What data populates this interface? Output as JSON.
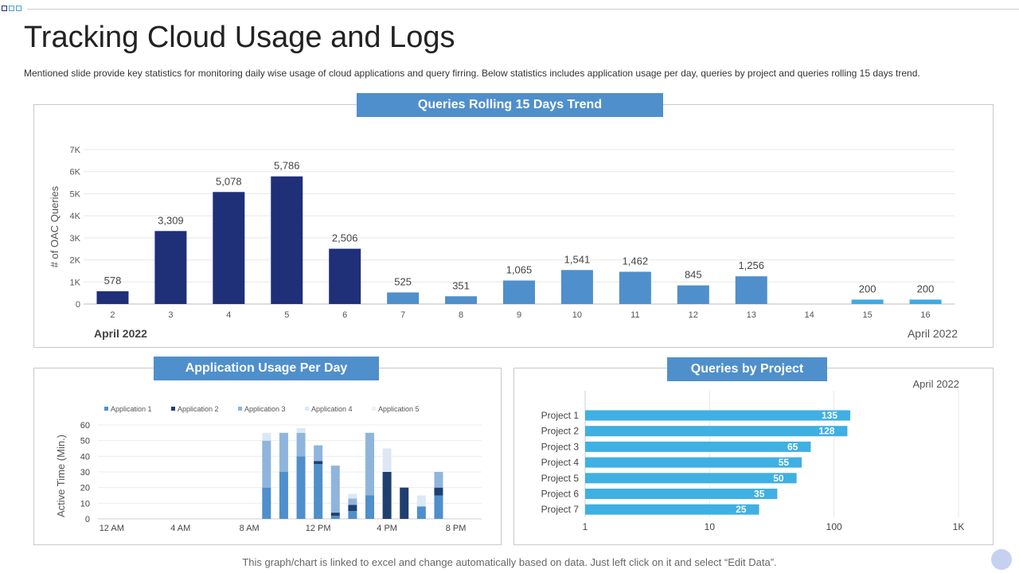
{
  "page": {
    "title": "Tracking Cloud Usage and Logs",
    "subtitle": "Mentioned slide provide key statistics for monitoring daily wise usage of cloud applications and query firring. Below statistics includes application usage per day, queries by project and queries rolling 15 days trend.",
    "footer": "This graph/chart is linked to excel and change automatically based on data. Just left click on it and select “Edit Data”."
  },
  "chart_data": [
    {
      "type": "bar",
      "title": "Queries Rolling 15 Days Trend",
      "xlabel": "",
      "ylabel": "# of OAC Queries",
      "categories": [
        "2",
        "3",
        "4",
        "5",
        "6",
        "7",
        "8",
        "9",
        "10",
        "11",
        "12",
        "13",
        "14",
        "15",
        "16"
      ],
      "values": [
        578,
        3309,
        5078,
        5786,
        2506,
        525,
        351,
        1065,
        1541,
        1462,
        845,
        1256,
        0,
        200,
        200
      ],
      "data_labels": [
        "578",
        "3,309",
        "5,078",
        "5,786",
        "2,506",
        "525",
        "351",
        "1,065",
        "1,541",
        "1,462",
        "845",
        "1,256",
        "",
        "200",
        "200"
      ],
      "yticks": [
        "0",
        "1K",
        "2K",
        "3K",
        "4K",
        "5K",
        "6K",
        "7K"
      ],
      "ylim": [
        0,
        7000
      ],
      "colors": [
        "#1f2f78",
        "#1f2f78",
        "#1f2f78",
        "#1f2f78",
        "#1f2f78",
        "#4f8fcb",
        "#4f8fcb",
        "#4f8fcb",
        "#4f8fcb",
        "#4f8fcb",
        "#4f8fcb",
        "#4f8fcb",
        "#4f8fcb",
        "#3fa9e0",
        "#3fa9e0"
      ],
      "annotation_left": "April 2022",
      "annotation_right": "April 2022",
      "grid": true
    },
    {
      "type": "bar",
      "stacked": true,
      "title": "Application Usage Per Day",
      "ylabel": "Active Time (Min.)",
      "xlabel": "",
      "ylim": [
        0,
        60
      ],
      "yticks": [
        "0",
        "10",
        "20",
        "30",
        "40",
        "50",
        "60"
      ],
      "xticks": [
        "12 AM",
        "4 AM",
        "8 AM",
        "12 PM",
        "4 PM",
        "8 PM"
      ],
      "x": [
        9,
        10,
        11,
        12,
        13,
        14,
        15,
        16,
        17,
        18,
        19
      ],
      "series": [
        {
          "name": "Application 1",
          "color": "#4f8fcb",
          "values": [
            20,
            30,
            40,
            35,
            2,
            5,
            15,
            0,
            0,
            8,
            15
          ]
        },
        {
          "name": "Application 2",
          "color": "#1f3f6f",
          "values": [
            0,
            0,
            0,
            2,
            2,
            4,
            0,
            30,
            20,
            0,
            5
          ]
        },
        {
          "name": "Application 3",
          "color": "#8fb5dd",
          "values": [
            30,
            25,
            15,
            10,
            30,
            4,
            40,
            0,
            0,
            0,
            10
          ]
        },
        {
          "name": "Application 4",
          "color": "#dce8f5",
          "values": [
            5,
            0,
            3,
            0,
            0,
            3,
            0,
            15,
            0,
            7,
            0
          ]
        },
        {
          "name": "Application 5",
          "color": "#eaf1f9",
          "values": [
            0,
            0,
            0,
            0,
            0,
            0,
            0,
            0,
            0,
            0,
            0
          ]
        }
      ],
      "legend": "top",
      "grid": true
    },
    {
      "type": "bar",
      "orientation": "horizontal",
      "title": "Queries by Project",
      "xscale": "log",
      "categories": [
        "Project 1",
        "Project 2",
        "Project 3",
        "Project 4",
        "Project 5",
        "Project 6",
        "Project 7"
      ],
      "values": [
        135,
        128,
        65,
        55,
        50,
        35,
        25
      ],
      "xticks": [
        "1",
        "10",
        "100",
        "1K"
      ],
      "xlim": [
        1,
        1000
      ],
      "annotation": "April 2022",
      "color": "#3fb0e3"
    }
  ]
}
